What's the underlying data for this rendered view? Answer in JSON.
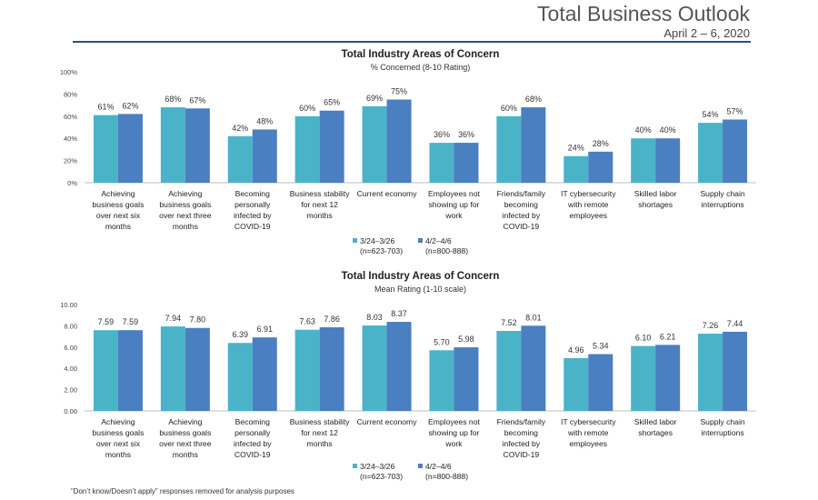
{
  "header": {
    "title": "Total Business Outlook",
    "date": "April 2 – 6, 2020"
  },
  "footnote": "“Don’t know/Doesn’t apply” responses removed for analysis purposes",
  "colors": {
    "series1": "#4bb3c8",
    "series2": "#4a7fc1",
    "axis": "#bfbfbf",
    "rule": "#2e4f7a"
  },
  "chart_data": [
    {
      "type": "bar",
      "title": "Total Industry Areas of Concern",
      "subtitle": "% Concerned (8-10 Rating)",
      "categories": [
        "Achieving business goals over next six months",
        "Achieving business goals over next three months",
        "Becoming personally infected by COVID-19",
        "Business stability for next 12 months",
        "Current economy",
        "Employees not showing up for work",
        "Friends/family becoming infected by COVID-19",
        "IT cybersecurity with remote employees",
        "Skilled labor shortages",
        "Supply chain interruptions"
      ],
      "category_lines": [
        [
          "Achieving",
          "business goals",
          "over next six",
          "months"
        ],
        [
          "Achieving",
          "business goals",
          "over next three",
          "months"
        ],
        [
          "Becoming",
          "personally",
          "infected by",
          "COVID-19"
        ],
        [
          "Business stability",
          "for next 12",
          "months"
        ],
        [
          "Current economy"
        ],
        [
          "Employees not",
          "showing up for",
          "work"
        ],
        [
          "Friends/family",
          "becoming",
          "infected by",
          "COVID-19"
        ],
        [
          "IT cybersecurity",
          "with remote",
          "employees"
        ],
        [
          "Skilled labor",
          "shortages"
        ],
        [
          "Supply chain",
          "interruptions"
        ]
      ],
      "series": [
        {
          "name": "3/24–3/26",
          "n": "(n=623-703)",
          "values": [
            61,
            68,
            42,
            60,
            69,
            36,
            60,
            24,
            40,
            54
          ],
          "labels": [
            "61%",
            "68%",
            "42%",
            "60%",
            "69%",
            "36%",
            "60%",
            "24%",
            "40%",
            "54%"
          ]
        },
        {
          "name": "4/2–4/6",
          "n": "(n=800-888)",
          "values": [
            62,
            67,
            48,
            65,
            75,
            36,
            68,
            28,
            40,
            57
          ],
          "labels": [
            "62%",
            "67%",
            "48%",
            "65%",
            "75%",
            "36%",
            "68%",
            "28%",
            "40%",
            "57%"
          ]
        }
      ],
      "ylim": [
        0,
        100
      ],
      "yticks": [
        0,
        20,
        40,
        60,
        80,
        100
      ],
      "ytick_labels": [
        "0%",
        "20%",
        "40%",
        "60%",
        "80%",
        "100%"
      ],
      "grid": false,
      "legend": "bottom"
    },
    {
      "type": "bar",
      "title": "Total Industry Areas of Concern",
      "subtitle": "Mean Rating (1-10 scale)",
      "categories": [
        "Achieving business goals over next six months",
        "Achieving business goals over next three months",
        "Becoming personally infected by COVID-19",
        "Business stability for next 12 months",
        "Current economy",
        "Employees not showing up for work",
        "Friends/family becoming infected by COVID-19",
        "IT cybersecurity with remote employees",
        "Skilled labor shortages",
        "Supply chain interruptions"
      ],
      "category_lines": [
        [
          "Achieving",
          "business goals",
          "over next six",
          "months"
        ],
        [
          "Achieving",
          "business goals",
          "over next three",
          "months"
        ],
        [
          "Becoming",
          "personally",
          "infected by",
          "COVID-19"
        ],
        [
          "Business stability",
          "for next 12",
          "months"
        ],
        [
          "Current economy"
        ],
        [
          "Employees not",
          "showing up for",
          "work"
        ],
        [
          "Friends/family",
          "becoming",
          "infected by",
          "COVID-19"
        ],
        [
          "IT cybersecurity",
          "with remote",
          "employees"
        ],
        [
          "Skilled labor",
          "shortages"
        ],
        [
          "Supply chain",
          "interruptions"
        ]
      ],
      "series": [
        {
          "name": "3/24–3/26",
          "n": "(n=623-703)",
          "values": [
            7.59,
            7.94,
            6.39,
            7.63,
            8.03,
            5.7,
            7.52,
            4.96,
            6.1,
            7.26
          ],
          "labels": [
            "7.59",
            "7.94",
            "6.39",
            "7.63",
            "8.03",
            "5.70",
            "7.52",
            "4.96",
            "6.10",
            "7.26"
          ]
        },
        {
          "name": "4/2–4/6",
          "n": "(n=800-888)",
          "values": [
            7.59,
            7.8,
            6.91,
            7.86,
            8.37,
            5.98,
            8.01,
            5.34,
            6.21,
            7.44
          ],
          "labels": [
            "7.59",
            "7.80",
            "6.91",
            "7.86",
            "8.37",
            "5.98",
            "8.01",
            "5.34",
            "6.21",
            "7.44"
          ]
        }
      ],
      "ylim": [
        0,
        10
      ],
      "yticks": [
        0,
        2,
        4,
        6,
        8,
        10
      ],
      "ytick_labels": [
        "0.00",
        "2.00",
        "4.00",
        "6.00",
        "8.00",
        "10.00"
      ],
      "grid": false,
      "legend": "bottom"
    }
  ]
}
